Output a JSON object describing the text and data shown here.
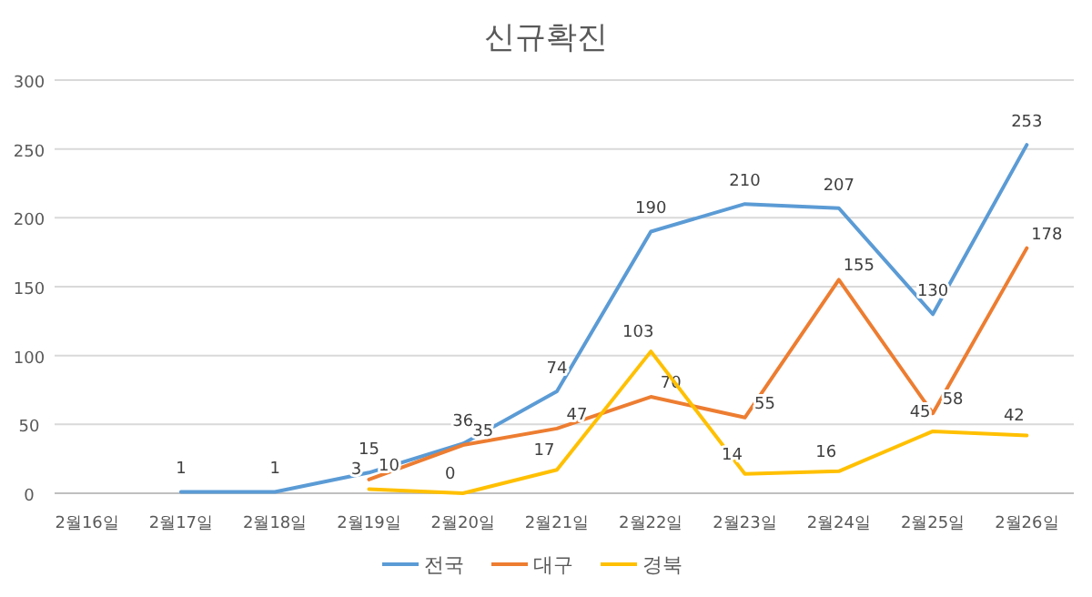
{
  "chart_data": {
    "type": "line",
    "title": "신규확진",
    "categories": [
      "2월16일",
      "2월17일",
      "2월18일",
      "2월19일",
      "2월20일",
      "2월21일",
      "2월22일",
      "2월23일",
      "2월24일",
      "2월25일",
      "2월26일"
    ],
    "series": [
      {
        "name": "전국",
        "color": "#5b9bd5",
        "values": [
          null,
          1,
          1,
          15,
          36,
          74,
          190,
          210,
          207,
          130,
          253
        ]
      },
      {
        "name": "대구",
        "color": "#ed7d31",
        "values": [
          null,
          null,
          null,
          10,
          35,
          47,
          70,
          55,
          155,
          58,
          178
        ]
      },
      {
        "name": "경북",
        "color": "#ffc000",
        "values": [
          null,
          null,
          null,
          3,
          0,
          17,
          103,
          14,
          16,
          45,
          42
        ]
      }
    ],
    "ylim": [
      0,
      300
    ],
    "yticks": [
      0,
      50,
      100,
      150,
      200,
      250,
      300
    ],
    "grid": "y",
    "legend": "bottom",
    "data_labels": true,
    "marker": "none",
    "line_style": "solid"
  }
}
